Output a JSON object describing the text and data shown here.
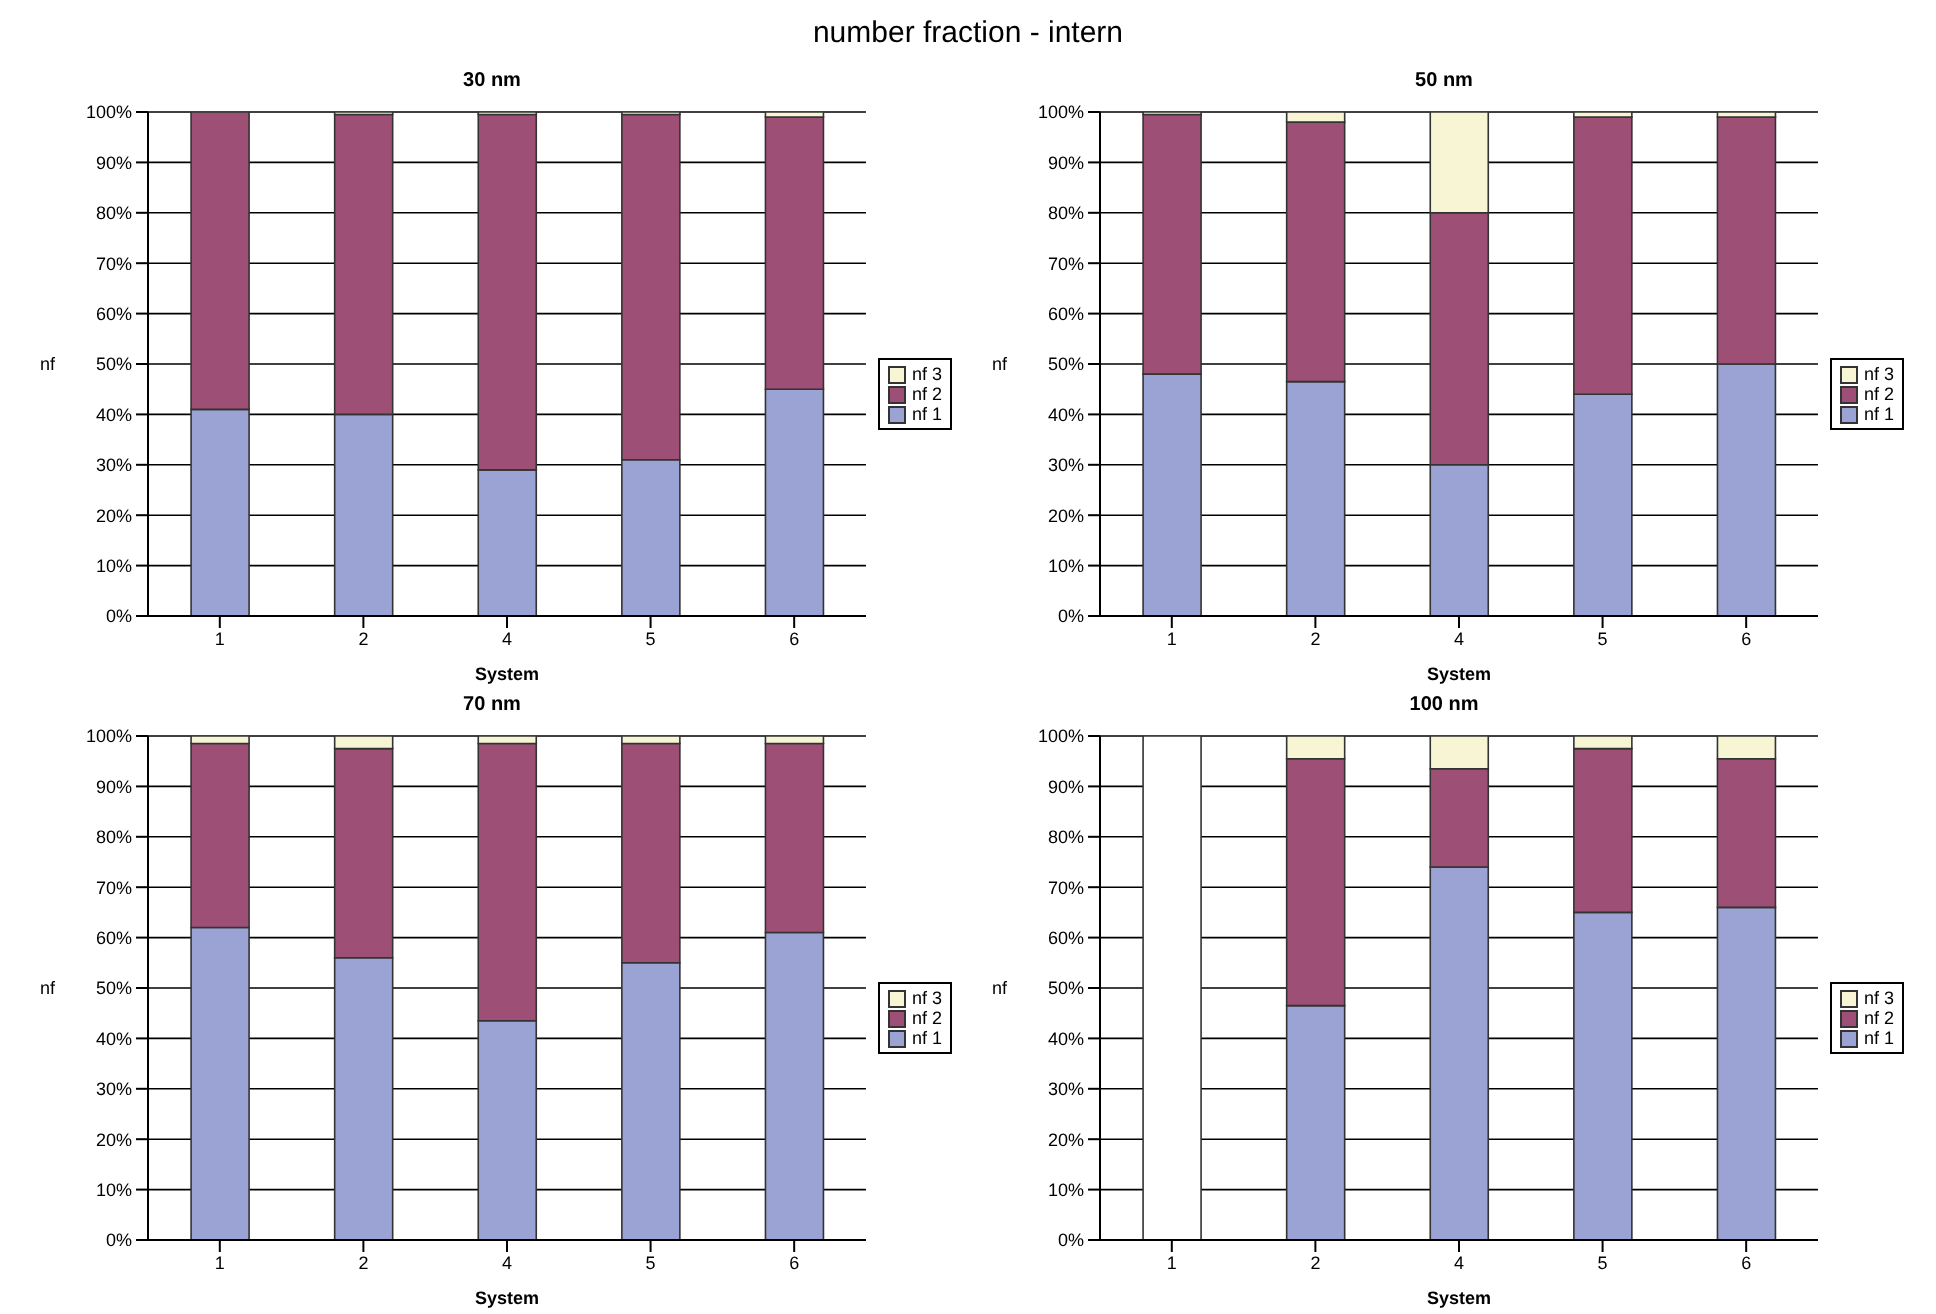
{
  "chart_data": [
    {
      "type": "bar",
      "title": "30 nm",
      "annotations": [
        "number fraction - intern"
      ],
      "xlabel": "System",
      "ylabel": "nf",
      "categories": [
        "1",
        "2",
        "4",
        "5",
        "6"
      ],
      "stacked": true,
      "grid": "y",
      "legend": "right",
      "ylim": [
        0,
        100
      ],
      "yticks": [
        {
          "value": 0,
          "label": "0%"
        },
        {
          "value": 10,
          "label": "10%"
        },
        {
          "value": 20,
          "label": "20%"
        },
        {
          "value": 30,
          "label": "30%"
        },
        {
          "value": 40,
          "label": "40%"
        },
        {
          "value": 50,
          "label": "50%"
        },
        {
          "value": 60,
          "label": "60%"
        },
        {
          "value": 70,
          "label": "70%"
        },
        {
          "value": 80,
          "label": "80%"
        },
        {
          "value": 90,
          "label": "90%"
        },
        {
          "value": 100,
          "label": "100%"
        }
      ],
      "series": [
        {
          "name": "nf 1",
          "color": "#9aa3d3",
          "values": [
            41,
            40,
            29,
            31,
            45
          ]
        },
        {
          "name": "nf 2",
          "color": "#9e4f76",
          "values": [
            59,
            59.5,
            70.5,
            68.5,
            54
          ]
        },
        {
          "name": "nf 3",
          "color": "#f7f5d3",
          "values": [
            0,
            0.5,
            0.5,
            0.5,
            1
          ]
        }
      ]
    },
    {
      "type": "bar",
      "title": "50 nm",
      "xlabel": "System",
      "ylabel": "nf",
      "categories": [
        "1",
        "2",
        "4",
        "5",
        "6"
      ],
      "stacked": true,
      "grid": "y",
      "legend": "right",
      "ylim": [
        0,
        100
      ],
      "yticks": [
        {
          "value": 0,
          "label": "0%"
        },
        {
          "value": 10,
          "label": "10%"
        },
        {
          "value": 20,
          "label": "20%"
        },
        {
          "value": 30,
          "label": "30%"
        },
        {
          "value": 40,
          "label": "40%"
        },
        {
          "value": 50,
          "label": "50%"
        },
        {
          "value": 60,
          "label": "60%"
        },
        {
          "value": 70,
          "label": "70%"
        },
        {
          "value": 80,
          "label": "80%"
        },
        {
          "value": 90,
          "label": "90%"
        },
        {
          "value": 100,
          "label": "100%"
        }
      ],
      "series": [
        {
          "name": "nf 1",
          "color": "#9aa3d3",
          "values": [
            48,
            46.5,
            30,
            44,
            50
          ]
        },
        {
          "name": "nf 2",
          "color": "#9e4f76",
          "values": [
            51.5,
            51.5,
            50,
            55,
            49
          ]
        },
        {
          "name": "nf 3",
          "color": "#f7f5d3",
          "values": [
            0.5,
            2,
            20,
            1,
            1
          ]
        }
      ]
    },
    {
      "type": "bar",
      "title": "70 nm",
      "xlabel": "System",
      "ylabel": "nf",
      "categories": [
        "1",
        "2",
        "4",
        "5",
        "6"
      ],
      "stacked": true,
      "grid": "y",
      "legend": "right",
      "ylim": [
        0,
        100
      ],
      "yticks": [
        {
          "value": 0,
          "label": "0%"
        },
        {
          "value": 10,
          "label": "10%"
        },
        {
          "value": 20,
          "label": "20%"
        },
        {
          "value": 30,
          "label": "30%"
        },
        {
          "value": 40,
          "label": "40%"
        },
        {
          "value": 50,
          "label": "50%"
        },
        {
          "value": 60,
          "label": "60%"
        },
        {
          "value": 70,
          "label": "70%"
        },
        {
          "value": 80,
          "label": "80%"
        },
        {
          "value": 90,
          "label": "90%"
        },
        {
          "value": 100,
          "label": "100%"
        }
      ],
      "series": [
        {
          "name": "nf 1",
          "color": "#9aa3d3",
          "values": [
            62,
            56,
            43.5,
            55,
            61
          ]
        },
        {
          "name": "nf 2",
          "color": "#9e4f76",
          "values": [
            36.5,
            41.5,
            55,
            43.5,
            37.5
          ]
        },
        {
          "name": "nf 3",
          "color": "#f7f5d3",
          "values": [
            1.5,
            2.5,
            1.5,
            1.5,
            1.5
          ]
        }
      ]
    },
    {
      "type": "bar",
      "title": "100 nm",
      "xlabel": "System",
      "ylabel": "nf",
      "categories": [
        "1",
        "2",
        "4",
        "5",
        "6"
      ],
      "stacked": true,
      "grid": "y",
      "legend": "right",
      "ylim": [
        0,
        100
      ],
      "yticks": [
        {
          "value": 0,
          "label": "0%"
        },
        {
          "value": 10,
          "label": "10%"
        },
        {
          "value": 20,
          "label": "20%"
        },
        {
          "value": 30,
          "label": "30%"
        },
        {
          "value": 40,
          "label": "40%"
        },
        {
          "value": 50,
          "label": "50%"
        },
        {
          "value": 60,
          "label": "60%"
        },
        {
          "value": 70,
          "label": "70%"
        },
        {
          "value": 80,
          "label": "80%"
        },
        {
          "value": 90,
          "label": "90%"
        },
        {
          "value": 100,
          "label": "100%"
        }
      ],
      "series": [
        {
          "name": "nf 1",
          "color": "#9aa3d3",
          "values": [
            null,
            46.5,
            74,
            65,
            66
          ]
        },
        {
          "name": "nf 2",
          "color": "#9e4f76",
          "values": [
            null,
            49,
            19.5,
            32.5,
            29.5
          ]
        },
        {
          "name": "nf 3",
          "color": "#f7f5d3",
          "colors": [
            "#ffffff",
            "#f7f5d3",
            "#f7f5d3",
            "#f7f5d3",
            "#f7f5d3"
          ],
          "values": [
            100,
            4.5,
            6.5,
            2.5,
            4.5
          ]
        }
      ]
    }
  ]
}
